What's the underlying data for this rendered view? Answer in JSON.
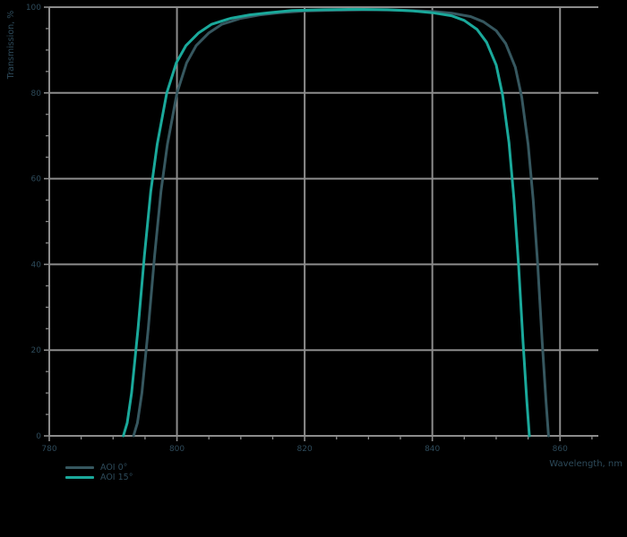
{
  "page": {
    "background": "#000000",
    "grid_color": "#8c8c8c",
    "spine_color": "#8c8c8c",
    "text_color": "#2d4a5a"
  },
  "chart_data": {
    "type": "line",
    "title": "",
    "xlabel": "Wavelength, nm",
    "ylabel": "Transmission, %",
    "xlim": [
      780,
      866
    ],
    "ylim": [
      0,
      100
    ],
    "x_major_ticks": [
      780,
      800,
      820,
      840,
      860
    ],
    "x_minor_step": 5,
    "y_major_ticks": [
      0,
      20,
      40,
      60,
      80,
      100
    ],
    "y_minor_step": 5,
    "grid": true,
    "legend_position": "bottom-left",
    "series": [
      {
        "name": "AOI 0°",
        "color": "#36575f",
        "points": [
          [
            793.2,
            0
          ],
          [
            793.8,
            3
          ],
          [
            794.5,
            10
          ],
          [
            795.5,
            25
          ],
          [
            796.5,
            42
          ],
          [
            797.5,
            57
          ],
          [
            798.5,
            68
          ],
          [
            800,
            80
          ],
          [
            801.5,
            87
          ],
          [
            803,
            91
          ],
          [
            805,
            94
          ],
          [
            807,
            96
          ],
          [
            810,
            97.4
          ],
          [
            813,
            98.2
          ],
          [
            816,
            98.7
          ],
          [
            820,
            99.1
          ],
          [
            825,
            99.3
          ],
          [
            830,
            99.4
          ],
          [
            835,
            99.3
          ],
          [
            840,
            99.0
          ],
          [
            843,
            98.6
          ],
          [
            846,
            97.8
          ],
          [
            848,
            96.6
          ],
          [
            850,
            94.5
          ],
          [
            851.5,
            91.5
          ],
          [
            853,
            86
          ],
          [
            854,
            79
          ],
          [
            855,
            68
          ],
          [
            855.8,
            55
          ],
          [
            856.5,
            40
          ],
          [
            857.2,
            22
          ],
          [
            857.8,
            8
          ],
          [
            858.2,
            0
          ]
        ]
      },
      {
        "name": "AOI 15°",
        "color": "#1aa99b",
        "points": [
          [
            791.6,
            0
          ],
          [
            792.2,
            3
          ],
          [
            792.9,
            10
          ],
          [
            793.9,
            25
          ],
          [
            794.9,
            42
          ],
          [
            795.9,
            57
          ],
          [
            796.9,
            68
          ],
          [
            798.4,
            80
          ],
          [
            799.9,
            87
          ],
          [
            801.4,
            91
          ],
          [
            803.4,
            94
          ],
          [
            805.4,
            96
          ],
          [
            808.4,
            97.4
          ],
          [
            811.4,
            98.2
          ],
          [
            814.4,
            98.7
          ],
          [
            818,
            99.2
          ],
          [
            823,
            99.4
          ],
          [
            828,
            99.5
          ],
          [
            833,
            99.4
          ],
          [
            837,
            99.1
          ],
          [
            840,
            98.7
          ],
          [
            843,
            98.0
          ],
          [
            845,
            96.9
          ],
          [
            847,
            94.8
          ],
          [
            848.5,
            91.8
          ],
          [
            850,
            86.5
          ],
          [
            851,
            79.5
          ],
          [
            852,
            68.5
          ],
          [
            852.8,
            55
          ],
          [
            853.5,
            40
          ],
          [
            854.2,
            22
          ],
          [
            854.8,
            8
          ],
          [
            855.2,
            0
          ]
        ]
      }
    ]
  }
}
